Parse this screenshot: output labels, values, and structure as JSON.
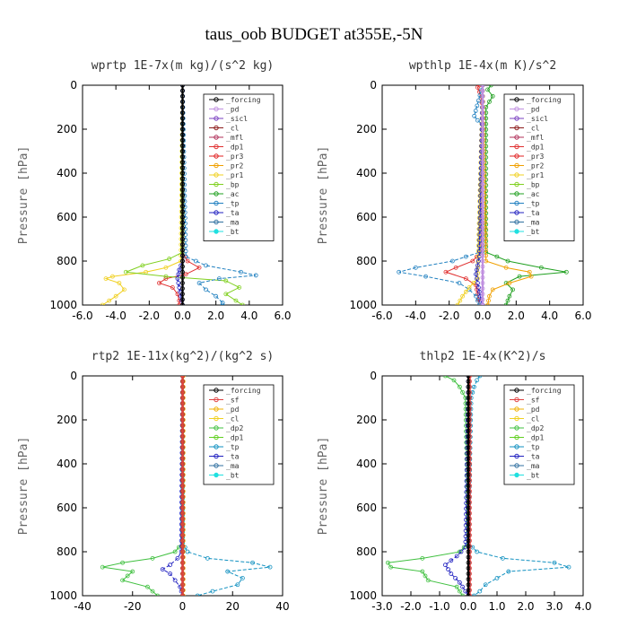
{
  "title": "taus_oob  BUDGET at355E,-5N",
  "colors": {
    "forcing": "#000000",
    "pd": "#c090e0",
    "sicl": "#7a40c0",
    "cl": "#8b1a1a",
    "mfl": "#b0305a",
    "dp1": "#e03030",
    "pr3": "#e02020",
    "pr2": "#f0a000",
    "pr1": "#f0d020",
    "bp": "#80d020",
    "ac": "#20a020",
    "tp": "#2080c0",
    "ta": "#2020c0",
    "ma": "#3070a0",
    "bt": "#20e0e0",
    "sf": "#e04040",
    "pd_yellow": "#f0b000",
    "cl_yellow": "#f0d020",
    "dp2": "#40c040",
    "dp1_green": "#60d020",
    "tp_blue": "#1090c0"
  },
  "chart_data": [
    {
      "type": "line",
      "title": "wprtp  1E-7x(m kg)/(s^2 kg)",
      "ylabel": "Pressure [hPa]",
      "xlabel": "",
      "xlim": [
        -6,
        6
      ],
      "ylim": [
        1000,
        0
      ],
      "xticks": [
        "-6.0",
        "-4.0",
        "-2.0",
        "0.0",
        "2.0",
        "4.0",
        "6.0"
      ],
      "yticks": [
        "0",
        "200",
        "400",
        "600",
        "800",
        "1000"
      ],
      "legend_position": "top-right",
      "legend": [
        "_forcing",
        "_pd",
        "_sicl",
        "_cl",
        "_mfl",
        "_dp1",
        "_pr3",
        "_pr2",
        "_pr1",
        "_bp",
        "_ac",
        "_tp",
        "_ta",
        "_ma",
        "_bt"
      ],
      "series": [
        {
          "name": "_forcing",
          "color_key": "forcing",
          "p": [
            0,
            1000
          ],
          "x": [
            0,
            0
          ]
        },
        {
          "name": "_dp1",
          "color_key": "dp1",
          "p": [
            0,
            760,
            800,
            830,
            860,
            880,
            900,
            920,
            950,
            980,
            1000
          ],
          "x": [
            0,
            0,
            0.3,
            1.0,
            0.2,
            -1.0,
            -1.4,
            -0.6,
            -0.3,
            -0.2,
            -0.2
          ]
        },
        {
          "name": "_pr1",
          "color_key": "pr1",
          "p": [
            0,
            800,
            830,
            850,
            870,
            880,
            900,
            930,
            960,
            1000
          ],
          "x": [
            0,
            -0.1,
            -1.0,
            -2.2,
            -4.2,
            -4.6,
            -3.8,
            -3.5,
            -4.0,
            -4.8
          ]
        },
        {
          "name": "_bp",
          "color_key": "bp",
          "p": [
            0,
            760,
            790,
            820,
            850,
            870,
            890,
            920,
            950,
            980,
            1000
          ],
          "x": [
            0,
            0,
            -0.8,
            -2.4,
            -3.4,
            -1.0,
            2.6,
            3.4,
            2.6,
            3.2,
            3.6
          ]
        },
        {
          "name": "_tp",
          "color_key": "tp",
          "p": [
            0,
            780,
            820,
            850,
            865,
            880,
            900,
            930,
            960,
            990,
            1000
          ],
          "x": [
            0,
            0.2,
            1.4,
            3.5,
            4.4,
            2.2,
            1.0,
            1.4,
            2.0,
            2.4,
            2.4
          ]
        },
        {
          "name": "_ta",
          "color_key": "ta",
          "p": [
            0,
            800,
            840,
            880,
            920,
            960,
            1000
          ],
          "x": [
            0,
            0,
            -0.2,
            -0.3,
            -0.2,
            -0.1,
            0
          ]
        }
      ]
    },
    {
      "type": "line",
      "title": "wpthlp  1E-4x(m K)/s^2",
      "ylabel": "Pressure [hPa]",
      "xlabel": "",
      "xlim": [
        -6,
        6
      ],
      "ylim": [
        1000,
        0
      ],
      "xticks": [
        "-6.0",
        "-4.0",
        "-2.0",
        "0.0",
        "2.0",
        "4.0",
        "6.0"
      ],
      "yticks": [
        "0",
        "200",
        "400",
        "600",
        "800",
        "1000"
      ],
      "legend_position": "top-right",
      "legend": [
        "_forcing",
        "_pd",
        "_sicl",
        "_cl",
        "_mfl",
        "_dp1",
        "_pr3",
        "_pr2",
        "_pr1",
        "_bp",
        "_ac",
        "_tp",
        "_ta",
        "_ma",
        "_bt"
      ],
      "series": [
        {
          "name": "_pd",
          "color_key": "pd",
          "p": [
            0,
            1000
          ],
          "x": [
            0,
            0
          ]
        },
        {
          "name": "_dp1",
          "color_key": "dp1",
          "p": [
            0,
            10,
            30,
            60,
            100,
            760,
            800,
            830,
            850,
            880,
            910,
            950,
            1000
          ],
          "x": [
            -0.2,
            -0.3,
            -0.2,
            -0.1,
            0,
            -0.1,
            -0.6,
            -1.6,
            -2.2,
            -1.0,
            -0.4,
            -0.3,
            -0.2
          ]
        },
        {
          "name": "_ac",
          "color_key": "ac",
          "p": [
            0,
            20,
            50,
            100,
            760,
            800,
            830,
            850,
            870,
            900,
            930,
            960,
            1000
          ],
          "x": [
            0.5,
            0.3,
            0.6,
            0.2,
            0.2,
            1.5,
            3.5,
            5.0,
            2.2,
            1.4,
            1.8,
            1.6,
            1.4
          ]
        },
        {
          "name": "_tp",
          "color_key": "tp",
          "p": [
            0,
            140,
            160,
            180,
            760,
            800,
            830,
            850,
            870,
            900,
            930,
            960,
            1000
          ],
          "x": [
            0,
            -0.5,
            -0.3,
            0,
            -0.2,
            -1.8,
            -4.0,
            -5.0,
            -3.4,
            -1.4,
            -0.8,
            -0.4,
            -0.2
          ]
        },
        {
          "name": "_pr2",
          "color_key": "pr2",
          "p": [
            0,
            800,
            830,
            850,
            870,
            900,
            930,
            960,
            1000
          ],
          "x": [
            0,
            0.2,
            1.4,
            2.8,
            2.9,
            1.6,
            0.6,
            0.4,
            0.3
          ]
        },
        {
          "name": "_pr1",
          "color_key": "pr1",
          "p": [
            0,
            880,
            920,
            960,
            1000
          ],
          "x": [
            0,
            -0.3,
            -0.8,
            -1.2,
            -1.5
          ]
        },
        {
          "name": "_ta",
          "color_key": "ta",
          "p": [
            0,
            780,
            820,
            860,
            900,
            940,
            980,
            1000
          ],
          "x": [
            0,
            -0.2,
            -0.3,
            -0.4,
            -0.3,
            -0.2,
            -0.1,
            0
          ]
        }
      ]
    },
    {
      "type": "line",
      "title": "rtp2  1E-11x(kg^2)/(kg^2 s)",
      "ylabel": "Pressure [hPa]",
      "xlabel": "",
      "xlim": [
        -40,
        40
      ],
      "ylim": [
        1000,
        0
      ],
      "xticks": [
        "-40",
        "-20",
        "0",
        "20",
        "40"
      ],
      "yticks": [
        "0",
        "200",
        "400",
        "600",
        "800",
        "1000"
      ],
      "legend_position": "top-right",
      "legend": [
        "_forcing",
        "_sf",
        "_pd",
        "_cl",
        "_dp2",
        "_dp1",
        "_tp",
        "_ta",
        "_ma",
        "_bt"
      ],
      "series": [
        {
          "name": "_forcing",
          "color_key": "forcing",
          "p": [
            0,
            1000
          ],
          "x": [
            0,
            0
          ]
        },
        {
          "name": "_dp2",
          "color_key": "dp2",
          "p": [
            0,
            760,
            800,
            830,
            850,
            870,
            890,
            910,
            930,
            960,
            980,
            1000
          ],
          "x": [
            0,
            0,
            -3,
            -12,
            -24,
            -32,
            -20,
            -22,
            -24,
            -14,
            -12,
            -10
          ]
        },
        {
          "name": "_tp",
          "color_key": "tp_blue",
          "p": [
            0,
            760,
            800,
            830,
            850,
            870,
            890,
            920,
            950,
            980,
            1000
          ],
          "x": [
            0,
            0,
            2,
            10,
            28,
            35,
            18,
            24,
            22,
            12,
            6
          ]
        },
        {
          "name": "_ta",
          "color_key": "ta",
          "p": [
            0,
            800,
            830,
            860,
            880,
            900,
            930,
            960,
            1000
          ],
          "x": [
            0,
            -0.5,
            -2,
            -5,
            -8,
            -5,
            -3,
            -1,
            0
          ]
        },
        {
          "name": "_pd",
          "color_key": "pd_yellow",
          "p": [
            0,
            1000
          ],
          "x": [
            0.3,
            0.3
          ]
        },
        {
          "name": "_sf",
          "color_key": "sf",
          "p": [
            0,
            1000
          ],
          "x": [
            0,
            0
          ]
        }
      ]
    },
    {
      "type": "line",
      "title": "thlp2  1E-4x(K^2)/s",
      "ylabel": "Pressure [hPa]",
      "xlabel": "",
      "xlim": [
        -3,
        4
      ],
      "ylim": [
        1000,
        0
      ],
      "xticks": [
        "-3.0",
        "-2.0",
        "-1.0",
        "0.0",
        "1.0",
        "2.0",
        "3.0",
        "4.0"
      ],
      "yticks": [
        "0",
        "200",
        "400",
        "600",
        "800",
        "1000"
      ],
      "legend_position": "top-right",
      "legend": [
        "_forcing",
        "_sf",
        "_pd",
        "_cl",
        "_dp2",
        "_dp1",
        "_tp",
        "_ta",
        "_ma",
        "_bt"
      ],
      "series": [
        {
          "name": "_forcing",
          "color_key": "forcing",
          "p": [
            0,
            1000
          ],
          "x": [
            0,
            0
          ]
        },
        {
          "name": "_dp2",
          "color_key": "dp2",
          "p": [
            0,
            20,
            50,
            100,
            760,
            800,
            830,
            850,
            870,
            890,
            910,
            930,
            960,
            1000
          ],
          "x": [
            -0.8,
            -0.5,
            -0.3,
            -0.1,
            0,
            -0.3,
            -1.6,
            -2.8,
            -2.7,
            -1.6,
            -1.5,
            -1.4,
            -0.4,
            -0.2
          ]
        },
        {
          "name": "_tp",
          "color_key": "tp_blue",
          "p": [
            0,
            20,
            50,
            100,
            760,
            800,
            830,
            850,
            870,
            890,
            920,
            950,
            980,
            1000
          ],
          "x": [
            0.4,
            0.3,
            0.2,
            0.1,
            0,
            0.3,
            1.2,
            3.0,
            3.5,
            1.4,
            1.0,
            0.6,
            0.4,
            0.2
          ]
        },
        {
          "name": "_ta",
          "color_key": "ta",
          "p": [
            0,
            780,
            820,
            860,
            900,
            940,
            980,
            1000
          ],
          "x": [
            0,
            -0.1,
            -0.4,
            -0.8,
            -0.6,
            -0.3,
            -0.1,
            0
          ]
        },
        {
          "name": "_sf",
          "color_key": "sf",
          "p": [
            0,
            1000
          ],
          "x": [
            0.05,
            0.05
          ]
        }
      ]
    }
  ]
}
